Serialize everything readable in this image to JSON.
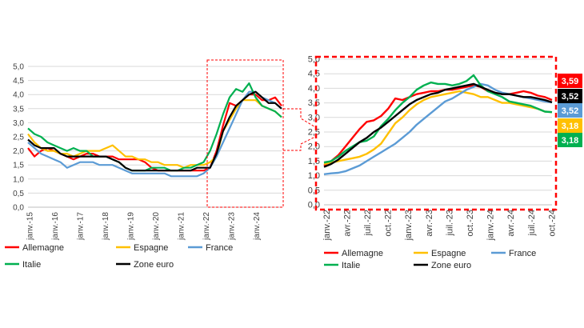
{
  "chart_data": [
    {
      "type": "line",
      "title": "",
      "xlabel": "",
      "ylabel": "",
      "ylim": [
        0,
        5
      ],
      "yticks": [
        "0,0",
        "0,5",
        "1,0",
        "1,5",
        "2,0",
        "2,5",
        "3,0",
        "3,5",
        "4,0",
        "4,5",
        "5,0"
      ],
      "xticks": [
        "janv.-15",
        "janv.-16",
        "janv.-17",
        "janv.-18",
        "janv.-19",
        "janv.-20",
        "janv.-21",
        "janv.-22",
        "janv.-23",
        "janv.-24"
      ],
      "grid": true,
      "legend_position": "bottom",
      "legend": [
        "Allemagne",
        "Espagne",
        "France",
        "Italie",
        "Zone euro"
      ],
      "x_start": "2015-01",
      "x_step": "quarter",
      "series": [
        {
          "name": "Allemagne",
          "color": "#ff0000",
          "values": [
            2.1,
            1.8,
            2.0,
            2.1,
            2.0,
            1.9,
            1.8,
            1.7,
            1.8,
            1.9,
            1.9,
            1.8,
            1.8,
            1.8,
            1.7,
            1.7,
            1.7,
            1.7,
            1.6,
            1.4,
            1.3,
            1.3,
            1.3,
            1.3,
            1.3,
            1.3,
            1.3,
            1.3,
            1.4,
            2.0,
            2.9,
            3.7,
            3.6,
            3.8,
            4.0,
            4.0,
            3.8,
            3.8,
            3.9,
            3.6
          ]
        },
        {
          "name": "Espagne",
          "color": "#ffc000",
          "values": [
            2.6,
            2.3,
            2.1,
            2.0,
            2.0,
            1.9,
            1.9,
            1.8,
            1.9,
            2.0,
            2.0,
            2.0,
            2.1,
            2.2,
            2.0,
            1.8,
            1.8,
            1.7,
            1.7,
            1.6,
            1.6,
            1.5,
            1.5,
            1.5,
            1.4,
            1.5,
            1.5,
            1.5,
            1.6,
            1.8,
            2.7,
            3.1,
            3.5,
            3.8,
            3.8,
            3.8,
            3.6,
            3.5,
            3.4,
            3.2
          ]
        },
        {
          "name": "France",
          "color": "#5b9bd5",
          "values": [
            2.3,
            2.1,
            1.9,
            1.8,
            1.7,
            1.6,
            1.4,
            1.5,
            1.6,
            1.6,
            1.6,
            1.5,
            1.5,
            1.5,
            1.4,
            1.3,
            1.2,
            1.2,
            1.2,
            1.2,
            1.2,
            1.2,
            1.1,
            1.1,
            1.1,
            1.1,
            1.1,
            1.2,
            1.4,
            1.8,
            2.3,
            2.8,
            3.3,
            3.8,
            4.1,
            4.1,
            3.9,
            3.8,
            3.7,
            3.5
          ]
        },
        {
          "name": "Italie",
          "color": "#00b050",
          "values": [
            2.8,
            2.6,
            2.5,
            2.3,
            2.2,
            2.1,
            2.0,
            2.1,
            2.0,
            2.0,
            1.8,
            1.8,
            1.8,
            1.7,
            1.6,
            1.4,
            1.3,
            1.3,
            1.3,
            1.4,
            1.4,
            1.4,
            1.3,
            1.3,
            1.4,
            1.4,
            1.5,
            1.6,
            2.0,
            2.6,
            3.3,
            3.9,
            4.2,
            4.1,
            4.4,
            3.9,
            3.6,
            3.5,
            3.4,
            3.2
          ]
        },
        {
          "name": "Zone euro",
          "color": "#000000",
          "values": [
            2.4,
            2.2,
            2.1,
            2.1,
            2.1,
            1.9,
            1.8,
            1.8,
            1.8,
            1.8,
            1.8,
            1.8,
            1.8,
            1.7,
            1.6,
            1.4,
            1.3,
            1.3,
            1.3,
            1.3,
            1.3,
            1.3,
            1.3,
            1.3,
            1.3,
            1.3,
            1.4,
            1.4,
            1.4,
            1.9,
            2.7,
            3.2,
            3.6,
            3.8,
            4.0,
            4.1,
            3.9,
            3.7,
            3.7,
            3.5
          ]
        }
      ],
      "highlight_window": "janv.-22 – oct.-24"
    },
    {
      "type": "line",
      "title": "",
      "xlabel": "",
      "ylabel": "",
      "ylim": [
        0,
        5
      ],
      "yticks": [
        "0,0",
        "0,5",
        "1,0",
        "1,5",
        "2,0",
        "2,5",
        "3,0",
        "3,5",
        "4,0",
        "4,5",
        "5,0"
      ],
      "xticks": [
        "janv.-22",
        "avr.-22",
        "juil.-22",
        "oct.-22",
        "janv.-23",
        "avr.-23",
        "juil.-23",
        "oct.-23",
        "janv.-24",
        "avr.-24",
        "juil.-24",
        "oct.-24"
      ],
      "grid": true,
      "legend_position": "bottom",
      "legend": [
        "Allemagne",
        "Espagne",
        "France",
        "Italie",
        "Zone euro"
      ],
      "series": [
        {
          "name": "Allemagne",
          "color": "#ff0000",
          "values": [
            1.35,
            1.5,
            1.7,
            2.0,
            2.3,
            2.6,
            2.85,
            2.9,
            3.05,
            3.3,
            3.65,
            3.6,
            3.7,
            3.8,
            3.85,
            3.9,
            3.9,
            3.95,
            3.95,
            4.0,
            4.05,
            4.1,
            4.05,
            3.9,
            3.85,
            3.8,
            3.8,
            3.85,
            3.9,
            3.85,
            3.75,
            3.7,
            3.6
          ]
        },
        {
          "name": "Espagne",
          "color": "#ffc000",
          "values": [
            1.4,
            1.45,
            1.5,
            1.55,
            1.6,
            1.65,
            1.75,
            1.9,
            2.1,
            2.45,
            2.8,
            3.0,
            3.25,
            3.45,
            3.6,
            3.7,
            3.75,
            3.8,
            3.85,
            3.9,
            3.85,
            3.8,
            3.7,
            3.7,
            3.6,
            3.5,
            3.5,
            3.45,
            3.4,
            3.35,
            3.3,
            3.2,
            3.18
          ]
        },
        {
          "name": "France",
          "color": "#5b9bd5",
          "values": [
            1.05,
            1.08,
            1.1,
            1.15,
            1.25,
            1.35,
            1.5,
            1.65,
            1.8,
            1.95,
            2.1,
            2.3,
            2.5,
            2.75,
            2.95,
            3.15,
            3.35,
            3.55,
            3.65,
            3.8,
            3.95,
            4.05,
            4.15,
            4.1,
            3.95,
            3.85,
            3.8,
            3.75,
            3.7,
            3.65,
            3.6,
            3.55,
            3.52
          ]
        },
        {
          "name": "Italie",
          "color": "#00b050",
          "values": [
            1.45,
            1.5,
            1.65,
            1.85,
            2.0,
            2.15,
            2.2,
            2.35,
            2.7,
            2.95,
            3.25,
            3.5,
            3.7,
            3.95,
            4.1,
            4.2,
            4.15,
            4.15,
            4.1,
            4.15,
            4.25,
            4.45,
            4.1,
            3.9,
            3.8,
            3.7,
            3.55,
            3.5,
            3.45,
            3.4,
            3.3,
            3.2,
            3.18
          ]
        },
        {
          "name": "Zone euro",
          "color": "#000000",
          "values": [
            1.3,
            1.4,
            1.55,
            1.75,
            1.95,
            2.15,
            2.3,
            2.5,
            2.65,
            2.85,
            3.05,
            3.25,
            3.45,
            3.6,
            3.7,
            3.8,
            3.85,
            3.95,
            4.0,
            4.05,
            4.1,
            4.15,
            4.05,
            3.95,
            3.85,
            3.8,
            3.8,
            3.75,
            3.7,
            3.7,
            3.65,
            3.6,
            3.52
          ]
        }
      ],
      "end_labels": [
        {
          "text": "3,59",
          "bg": "#ff0000",
          "fg": "#ffffff"
        },
        {
          "text": "3,52",
          "bg": "#000000",
          "fg": "#ffffff"
        },
        {
          "text": "3,52",
          "bg": "#5b9bd5",
          "fg": "#ffffff"
        },
        {
          "text": "3,18",
          "bg": "#ffc000",
          "fg": "#ffffff"
        },
        {
          "text": "3,18",
          "bg": "#00b050",
          "fg": "#ffffff"
        }
      ],
      "frame": "dashed-red"
    }
  ]
}
